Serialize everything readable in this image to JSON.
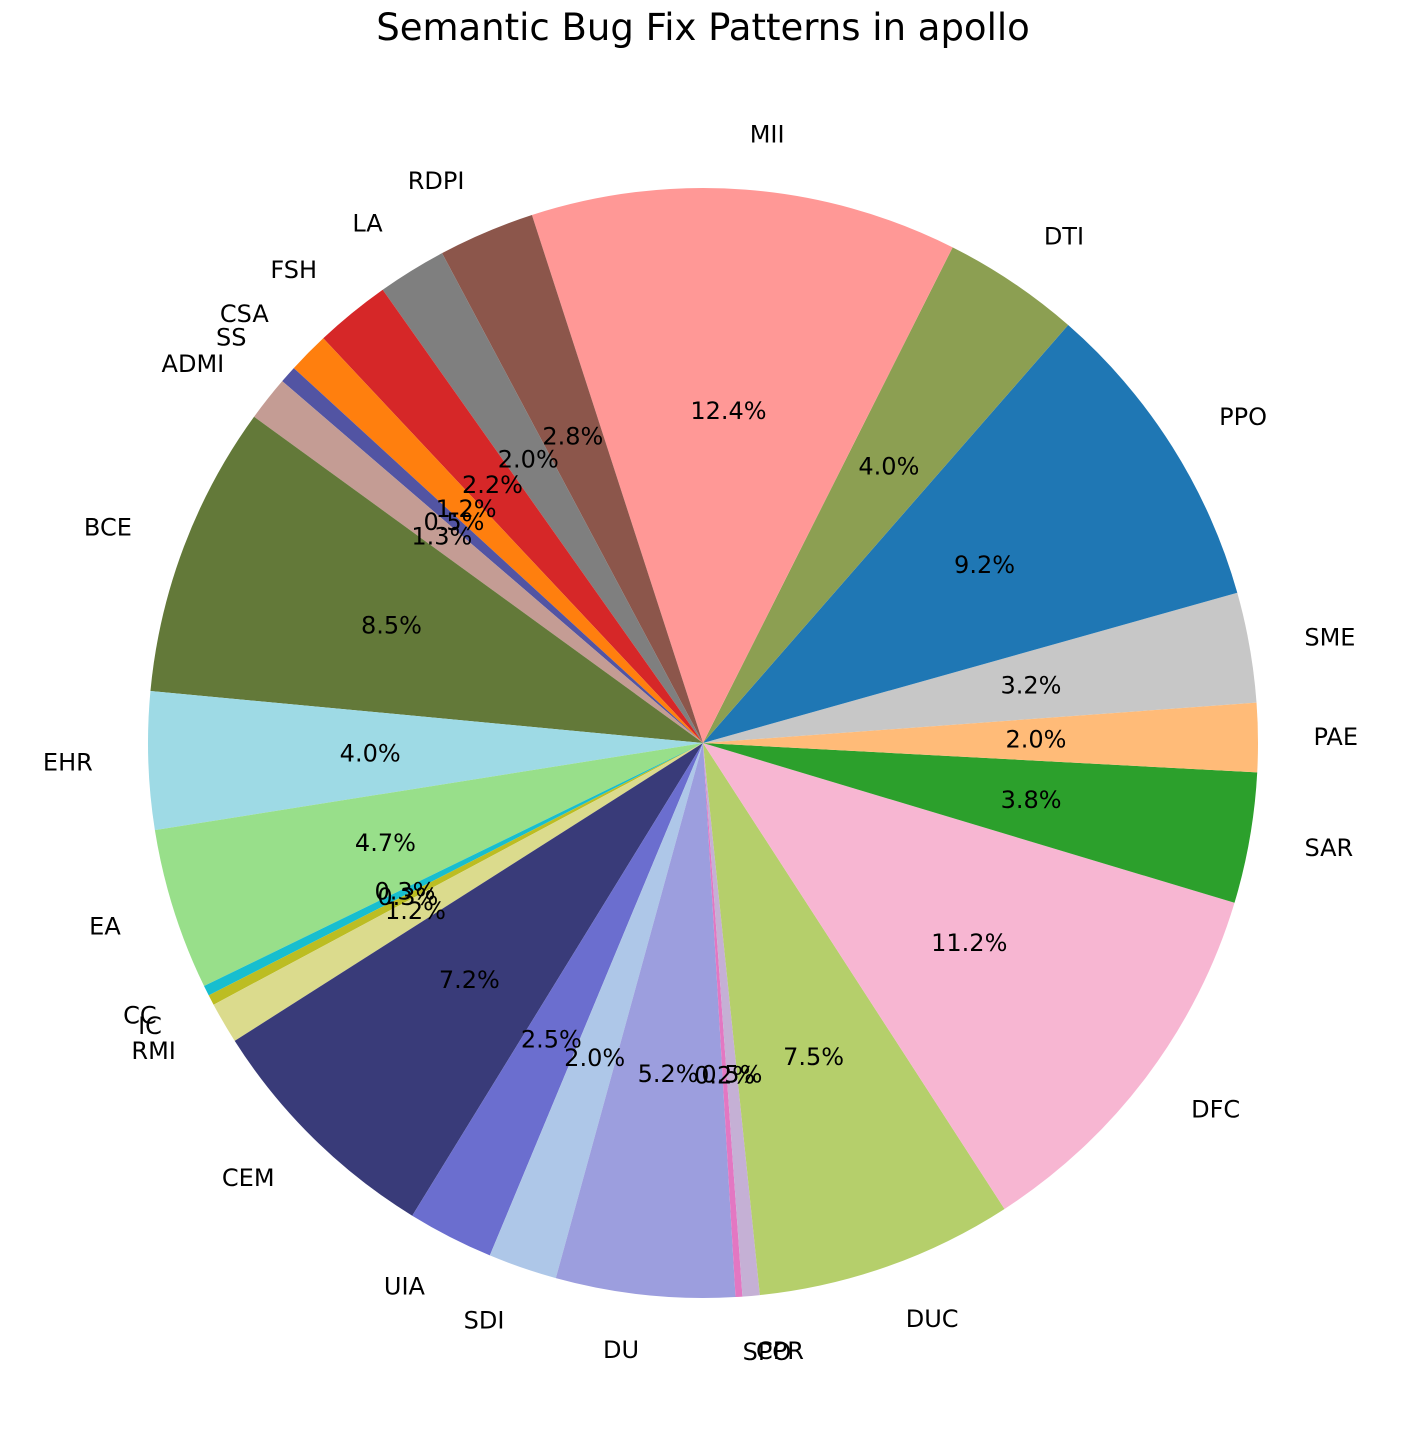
{
  "chart_data": {
    "type": "pie",
    "title": "Semantic Bug Fix Patterns in apollo",
    "start_angle_deg": 4.17,
    "direction": "counterclockwise",
    "slices": [
      {
        "label": "SME",
        "value": 3.2,
        "pct_label": "3.2%",
        "color": "#c7c7c7"
      },
      {
        "label": "PPO",
        "value": 9.2,
        "pct_label": "9.2%",
        "color": "#1f77b4"
      },
      {
        "label": "DTI",
        "value": 4.0,
        "pct_label": "4.0%",
        "color": "#8c9f52"
      },
      {
        "label": "MII",
        "value": 12.4,
        "pct_label": "12.4%",
        "color": "#ff9896"
      },
      {
        "label": "RDPI",
        "value": 2.8,
        "pct_label": "2.8%",
        "color": "#8c564b"
      },
      {
        "label": "LA",
        "value": 2.0,
        "pct_label": "2.0%",
        "color": "#7f7f7f"
      },
      {
        "label": "FSH",
        "value": 2.2,
        "pct_label": "2.2%",
        "color": "#d62728"
      },
      {
        "label": "CSA",
        "value": 1.2,
        "pct_label": "1.2%",
        "color": "#ff7f0e"
      },
      {
        "label": "SS",
        "value": 0.5,
        "pct_label": "0.5%",
        "color": "#5254a3"
      },
      {
        "label": "ADMI",
        "value": 1.3,
        "pct_label": "1.3%",
        "color": "#c49c94"
      },
      {
        "label": "BCE",
        "value": 8.5,
        "pct_label": "8.5%",
        "color": "#637939"
      },
      {
        "label": "EHR",
        "value": 4.0,
        "pct_label": "4.0%",
        "color": "#9edae5"
      },
      {
        "label": "EA",
        "value": 4.7,
        "pct_label": "4.7%",
        "color": "#98df8a"
      },
      {
        "label": "CC",
        "value": 0.3,
        "pct_label": "0.3%",
        "color": "#17becf"
      },
      {
        "label": "IC",
        "value": 0.3,
        "pct_label": "0.3%",
        "color": "#bcbd22"
      },
      {
        "label": "RMI",
        "value": 1.2,
        "pct_label": "1.2%",
        "color": "#dbdb8d"
      },
      {
        "label": "CEM",
        "value": 7.2,
        "pct_label": "7.2%",
        "color": "#393b79"
      },
      {
        "label": "UIA",
        "value": 2.5,
        "pct_label": "2.5%",
        "color": "#6b6ecf"
      },
      {
        "label": "SDI",
        "value": 2.0,
        "pct_label": "2.0%",
        "color": "#aec7e8"
      },
      {
        "label": "DU",
        "value": 5.2,
        "pct_label": "5.2%",
        "color": "#9c9ede"
      },
      {
        "label": "SPO",
        "value": 0.2,
        "pct_label": "0.2%",
        "color": "#e377c2"
      },
      {
        "label": "CPR",
        "value": 0.5,
        "pct_label": "0.5%",
        "color": "#c5b0d5"
      },
      {
        "label": "DUC",
        "value": 7.5,
        "pct_label": "7.5%",
        "color": "#b5cf6b"
      },
      {
        "label": "DFC",
        "value": 11.2,
        "pct_label": "11.2%",
        "color": "#f7b6d2"
      },
      {
        "label": "SAR",
        "value": 3.8,
        "pct_label": "3.8%",
        "color": "#2ca02c"
      },
      {
        "label": "PAE",
        "value": 2.0,
        "pct_label": "2.0%",
        "color": "#ffbb78"
      }
    ]
  }
}
